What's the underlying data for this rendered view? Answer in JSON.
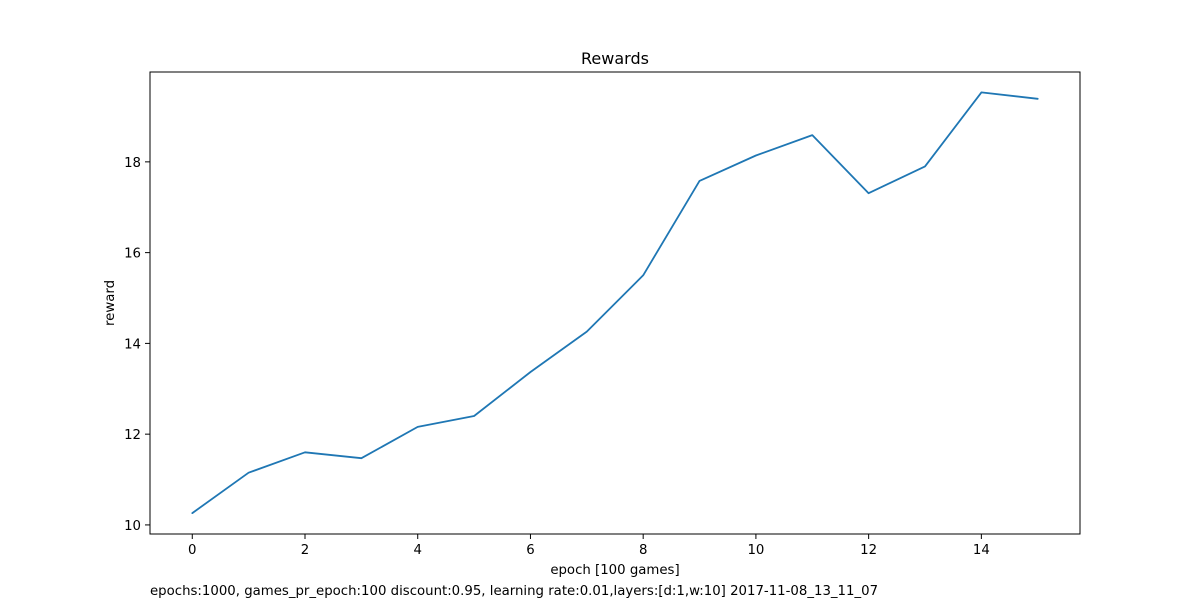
{
  "chart_data": {
    "type": "line",
    "title": "Rewards",
    "xlabel": "epoch [100 games]",
    "ylabel": "reward",
    "footnote": "epochs:1000, games_pr_epoch:100 discount:0.95, learning rate:0.01,layers:[d:1,w:10] 2017-11-08_13_11_07",
    "xlim": [
      -0.75,
      15.75
    ],
    "ylim": [
      9.8,
      19.98
    ],
    "xticks": [
      0,
      2,
      4,
      6,
      8,
      10,
      12,
      14
    ],
    "yticks": [
      10,
      12,
      14,
      16,
      18
    ],
    "grid": false,
    "series": [
      {
        "color": "#1f77b4",
        "x": [
          0,
          1,
          2,
          3,
          4,
          5,
          6,
          7,
          8,
          9,
          10,
          11,
          12,
          13,
          14,
          15
        ],
        "y": [
          10.26,
          11.15,
          11.6,
          11.47,
          12.16,
          12.4,
          13.37,
          14.26,
          15.5,
          17.58,
          18.14,
          18.59,
          17.31,
          17.9,
          19.53,
          19.39
        ]
      }
    ]
  }
}
